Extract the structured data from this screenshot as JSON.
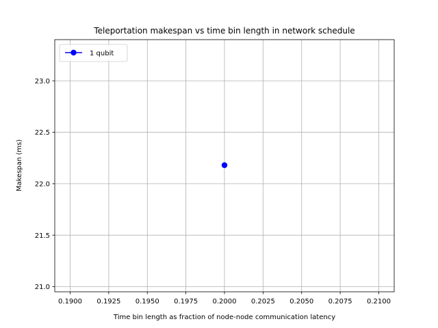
{
  "chart_data": {
    "type": "scatter",
    "title": "Teleportation makespan vs time bin length in network schedule",
    "xlabel": "Time bin length as fraction of node-node communication latency",
    "ylabel": "Makespan (ms)",
    "xlim": [
      0.189,
      0.211
    ],
    "ylim": [
      20.95,
      23.4
    ],
    "xticks": [
      0.19,
      0.1925,
      0.195,
      0.1975,
      0.2,
      0.2025,
      0.205,
      0.2075,
      0.21
    ],
    "xtick_labels": [
      "0.1900",
      "0.1925",
      "0.1950",
      "0.1975",
      "0.2000",
      "0.2025",
      "0.2050",
      "0.2075",
      "0.2100"
    ],
    "yticks": [
      21.0,
      21.5,
      22.0,
      22.5,
      23.0
    ],
    "ytick_labels": [
      "21.0",
      "21.5",
      "22.0",
      "22.5",
      "23.0"
    ],
    "grid": true,
    "legend_position": "top-left",
    "series": [
      {
        "name": "1 qubit",
        "color": "#0000ff",
        "marker": "circle",
        "x": [
          0.2
        ],
        "y": [
          22.18
        ]
      }
    ]
  }
}
